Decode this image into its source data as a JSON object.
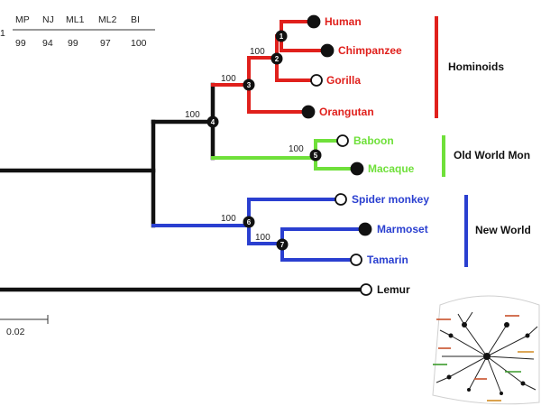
{
  "support_table": {
    "row_label": "1",
    "headers": [
      "MP",
      "NJ",
      "ML1",
      "ML2",
      "BI"
    ],
    "values": [
      "99",
      "94",
      "99",
      "97",
      "100"
    ]
  },
  "support_labels": {
    "node2": "100",
    "node3": "100",
    "node4": "100",
    "node5": "100",
    "node6": "100",
    "node7": "100"
  },
  "node_numbers": [
    "1",
    "2",
    "3",
    "4",
    "5",
    "6",
    "7"
  ],
  "taxa": {
    "human": "Human",
    "chimpanzee": "Chimpanzee",
    "gorilla": "Gorilla",
    "orangutan": "Orangutan",
    "baboon": "Baboon",
    "macaque": "Macaque",
    "spider_monkey": "Spider monkey",
    "marmoset": "Marmoset",
    "tamarin": "Tamarin",
    "lemur": "Lemur"
  },
  "groups": {
    "hominoids": "Hominoids",
    "old_world": "Old World Mon",
    "new_world": "New World"
  },
  "scale_bar": {
    "label": "0.02"
  },
  "colors": {
    "hominoids": "#e0201c",
    "old_world": "#6fe03a",
    "new_world": "#2a3fd0",
    "root": "#111111"
  }
}
